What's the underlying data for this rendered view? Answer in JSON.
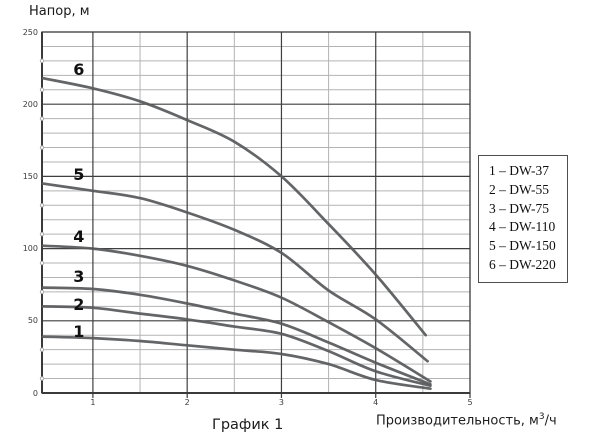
{
  "title": "График 1",
  "y_axis": {
    "label": "Напор, м",
    "ticks": [
      0,
      50,
      100,
      150,
      200,
      250
    ]
  },
  "x_axis": {
    "label_prefix": "Производительность, м",
    "label_sup": "3",
    "label_suffix": "/ч",
    "ticks": [
      1,
      2,
      3,
      4,
      5
    ]
  },
  "legend": {
    "items": [
      "1 – DW-37",
      "2 – DW-55",
      "3 – DW-75",
      "4 – DW-110",
      "5 – DW-150",
      "6 – DW-220"
    ]
  },
  "colors": {
    "curve": "#58595b",
    "grid_major": "#3f3f3f",
    "grid_minor": "#b3b3b3",
    "axis": "#3a3a3a",
    "axis_dot": "#ababab",
    "text": "#1d1d1d"
  },
  "chart_data": {
    "type": "line",
    "title": "График 1",
    "xlabel": "Производительность, м³/ч",
    "ylabel": "Напор, м",
    "xlim": [
      0.46,
      5
    ],
    "ylim": [
      0,
      250
    ],
    "x_major_grid": [
      1,
      2,
      3,
      4
    ],
    "x_minor_grid": [
      1.5,
      2.5,
      3.5,
      4.5
    ],
    "y_major_grid": [
      50,
      100,
      150,
      200
    ],
    "y_minor_step": 10,
    "grid": "on",
    "legend_position": "outside-right",
    "series": [
      {
        "name": "DW-37",
        "curve_label": "1",
        "label_pos": [
          0.85,
          42
        ],
        "points": [
          [
            0.47,
            39
          ],
          [
            1,
            38
          ],
          [
            1.5,
            36
          ],
          [
            2,
            33
          ],
          [
            2.5,
            30
          ],
          [
            3,
            27
          ],
          [
            3.5,
            20
          ],
          [
            4,
            9
          ],
          [
            4.58,
            3
          ]
        ]
      },
      {
        "name": "DW-55",
        "curve_label": "2",
        "label_pos": [
          0.85,
          61
        ],
        "points": [
          [
            0.47,
            60
          ],
          [
            1,
            59
          ],
          [
            1.5,
            55
          ],
          [
            2,
            51
          ],
          [
            2.5,
            46
          ],
          [
            3,
            41
          ],
          [
            3.5,
            29
          ],
          [
            4,
            15
          ],
          [
            4.58,
            5
          ]
        ]
      },
      {
        "name": "DW-75",
        "curve_label": "3",
        "label_pos": [
          0.85,
          80
        ],
        "points": [
          [
            0.47,
            73
          ],
          [
            1,
            72
          ],
          [
            1.5,
            68
          ],
          [
            2,
            62
          ],
          [
            2.5,
            55
          ],
          [
            3,
            48
          ],
          [
            3.5,
            35
          ],
          [
            4,
            21
          ],
          [
            4.58,
            6
          ]
        ]
      },
      {
        "name": "DW-110",
        "curve_label": "4",
        "label_pos": [
          0.85,
          108
        ],
        "points": [
          [
            0.47,
            102
          ],
          [
            1,
            100
          ],
          [
            1.5,
            95
          ],
          [
            2,
            88
          ],
          [
            2.5,
            78
          ],
          [
            3,
            66
          ],
          [
            3.5,
            49
          ],
          [
            4,
            31
          ],
          [
            4.58,
            8
          ]
        ]
      },
      {
        "name": "DW-150",
        "curve_label": "5",
        "label_pos": [
          0.85,
          151
        ],
        "points": [
          [
            0.47,
            145
          ],
          [
            1,
            140
          ],
          [
            1.5,
            135
          ],
          [
            2,
            125
          ],
          [
            2.5,
            113
          ],
          [
            3,
            97
          ],
          [
            3.5,
            71
          ],
          [
            4,
            51
          ],
          [
            4.55,
            22
          ]
        ]
      },
      {
        "name": "DW-220",
        "curve_label": "6",
        "label_pos": [
          0.85,
          224
        ],
        "points": [
          [
            0.47,
            218
          ],
          [
            1,
            211
          ],
          [
            1.5,
            202
          ],
          [
            2,
            189
          ],
          [
            2.5,
            174
          ],
          [
            3,
            150
          ],
          [
            3.5,
            117
          ],
          [
            4,
            82
          ],
          [
            4.53,
            40
          ]
        ]
      }
    ]
  }
}
